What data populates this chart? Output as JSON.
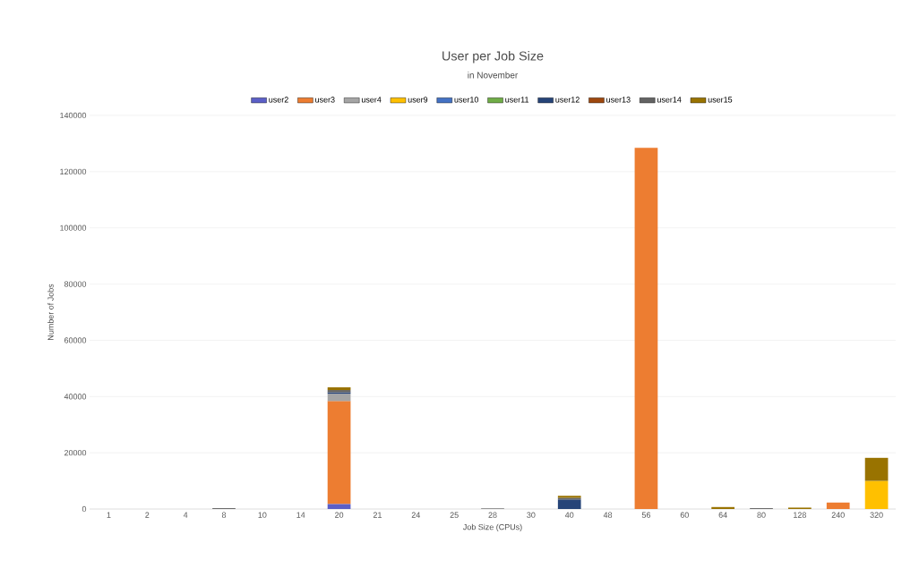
{
  "chart_data": {
    "type": "bar",
    "stacked": true,
    "title": "User per Job Size",
    "subtitle": "in November",
    "xlabel": "Job Size (CPUs)",
    "ylabel": "Number of Jobs",
    "categories": [
      "1",
      "2",
      "4",
      "8",
      "10",
      "14",
      "20",
      "21",
      "24",
      "25",
      "28",
      "30",
      "40",
      "48",
      "56",
      "60",
      "64",
      "80",
      "128",
      "240",
      "320"
    ],
    "series": [
      {
        "name": "user2",
        "color": "#5b5fc7",
        "values": [
          null,
          null,
          null,
          null,
          null,
          null,
          1800,
          null,
          null,
          null,
          null,
          null,
          null,
          null,
          null,
          null,
          null,
          null,
          null,
          null,
          null
        ]
      },
      {
        "name": "user3",
        "color": "#ed7d31",
        "values": [
          null,
          null,
          null,
          null,
          null,
          null,
          36600,
          null,
          null,
          null,
          null,
          null,
          null,
          null,
          128500,
          null,
          null,
          null,
          null,
          2300,
          null
        ]
      },
      {
        "name": "user4",
        "color": "#a5a5a5",
        "values": [
          null,
          null,
          null,
          null,
          null,
          null,
          2600,
          null,
          null,
          null,
          null,
          null,
          null,
          null,
          null,
          null,
          null,
          null,
          null,
          null,
          null
        ]
      },
      {
        "name": "user9",
        "color": "#ffc000",
        "values": [
          null,
          null,
          null,
          null,
          null,
          null,
          null,
          null,
          null,
          null,
          null,
          null,
          null,
          null,
          null,
          null,
          null,
          null,
          null,
          null,
          10000
        ]
      },
      {
        "name": "user10",
        "color": "#4472c4",
        "values": [
          null,
          null,
          null,
          null,
          null,
          null,
          null,
          null,
          null,
          null,
          null,
          null,
          null,
          null,
          null,
          null,
          null,
          null,
          null,
          null,
          null
        ]
      },
      {
        "name": "user11",
        "color": "#70ad47",
        "values": [
          null,
          null,
          null,
          null,
          null,
          null,
          null,
          null,
          null,
          null,
          null,
          null,
          null,
          null,
          null,
          null,
          null,
          null,
          null,
          null,
          null
        ]
      },
      {
        "name": "user12",
        "color": "#264478",
        "values": [
          null,
          null,
          null,
          null,
          null,
          null,
          500,
          null,
          null,
          null,
          null,
          null,
          3400,
          null,
          null,
          null,
          null,
          null,
          null,
          null,
          null
        ]
      },
      {
        "name": "user13",
        "color": "#9e480e",
        "values": [
          null,
          null,
          null,
          null,
          null,
          null,
          null,
          null,
          null,
          null,
          null,
          null,
          null,
          null,
          null,
          null,
          null,
          null,
          null,
          null,
          null
        ]
      },
      {
        "name": "user14",
        "color": "#636363",
        "values": [
          null,
          null,
          null,
          300,
          null,
          null,
          800,
          null,
          null,
          null,
          200,
          null,
          600,
          null,
          null,
          null,
          null,
          300,
          null,
          null,
          null
        ]
      },
      {
        "name": "user15",
        "color": "#997300",
        "values": [
          null,
          null,
          null,
          null,
          null,
          null,
          1000,
          null,
          null,
          null,
          null,
          null,
          700,
          null,
          null,
          null,
          700,
          null,
          500,
          null,
          8200
        ]
      }
    ],
    "ylim": [
      0,
      140000
    ],
    "yticks": [
      0,
      20000,
      40000,
      60000,
      80000,
      100000,
      120000,
      140000
    ],
    "grid": "y",
    "legend": "top"
  }
}
